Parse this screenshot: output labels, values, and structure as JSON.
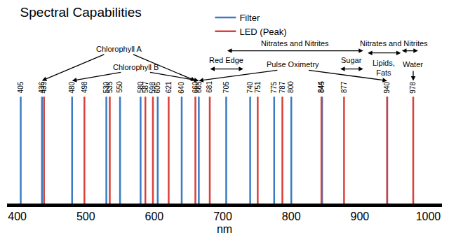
{
  "chart_data": {
    "type": "spectral_lines",
    "title": "Spectral Capabilities",
    "x_label": "nm",
    "xlim": [
      385,
      1020
    ],
    "xticks": [
      400,
      500,
      600,
      700,
      800,
      900,
      1000
    ],
    "tick_labels": "x",
    "legend": "top",
    "data_labels": true,
    "series": [
      {
        "name": "Filter",
        "color": "#3a7cc4",
        "values": [
          405,
          436,
          480,
          530,
          550,
          580,
          605,
          640,
          665,
          705,
          740,
          775,
          800,
          845,
          940
        ]
      },
      {
        "name": "LED (Peak)",
        "color": "#d9403a",
        "values": [
          439,
          498,
          535,
          587,
          598,
          621,
          660,
          681,
          751,
          787,
          844,
          877,
          940,
          978
        ]
      }
    ],
    "annotations": [
      {
        "text": "Chlorophyll A",
        "points_to": [
          436,
          660
        ]
      },
      {
        "text": "Chlorophyll B",
        "points_to": [
          480,
          665
        ]
      },
      {
        "text": "Nitrates and Nitrites",
        "span": [
          705,
          905
        ]
      },
      {
        "text": "Red Edge",
        "span": [
          680,
          730
        ]
      },
      {
        "text": "Pulse Oximetry",
        "points_to": [
          665,
          940
        ]
      },
      {
        "text": "Sugar",
        "span": [
          870,
          905
        ]
      },
      {
        "text": "Lipids,\nFats",
        "span": [
          910,
          960
        ]
      },
      {
        "text": "Nitrates and Nitrites",
        "span": [
          960,
          985
        ]
      },
      {
        "text": "Water",
        "points_to": [
          978
        ]
      }
    ]
  }
}
